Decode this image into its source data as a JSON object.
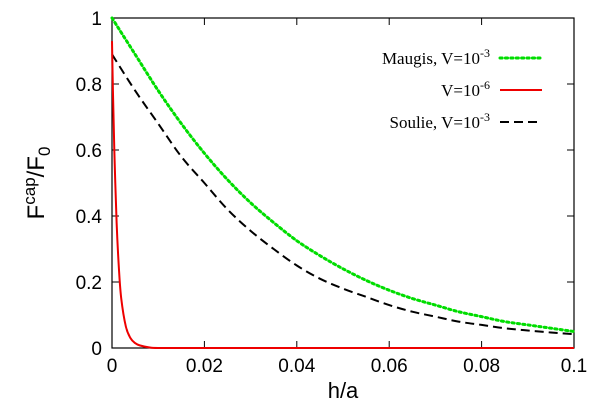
{
  "chart_data": {
    "type": "line",
    "title": "",
    "xlabel": "h/a",
    "ylabel": {
      "main": "F",
      "sup": "cap",
      "slash": "/F",
      "sub": "0"
    },
    "xlim": [
      0,
      0.1
    ],
    "ylim": [
      0,
      1
    ],
    "x_ticks": [
      0,
      0.02,
      0.04,
      0.06,
      0.08,
      0.1
    ],
    "x_tick_labels": [
      "0",
      "0.02",
      "0.04",
      "0.06",
      "0.08",
      "0.1"
    ],
    "y_ticks": [
      0,
      0.2,
      0.4,
      0.6,
      0.8,
      1
    ],
    "y_tick_labels": [
      "0",
      "0.2",
      "0.4",
      "0.6",
      "0.8",
      "1"
    ],
    "grid": false,
    "legend_position": "top-right",
    "series": [
      {
        "name": "Maugis, V=10-3",
        "legend": {
          "prefix": "Maugis, V=10",
          "exp": "-3"
        },
        "color": "#00dd00",
        "dash": "dotted",
        "x": [
          0,
          0.005,
          0.01,
          0.015,
          0.02,
          0.025,
          0.03,
          0.035,
          0.04,
          0.045,
          0.05,
          0.055,
          0.06,
          0.065,
          0.07,
          0.075,
          0.08,
          0.085,
          0.09,
          0.095,
          0.1
        ],
        "y": [
          1.0,
          0.89,
          0.78,
          0.68,
          0.59,
          0.51,
          0.44,
          0.38,
          0.325,
          0.28,
          0.24,
          0.205,
          0.175,
          0.15,
          0.13,
          0.11,
          0.095,
          0.08,
          0.07,
          0.06,
          0.05
        ]
      },
      {
        "name": "V=10-6",
        "legend": {
          "prefix": "V=10",
          "exp": "-6"
        },
        "color": "#ee0000",
        "dash": "solid",
        "x": [
          0,
          0.0002,
          0.0005,
          0.001,
          0.0015,
          0.002,
          0.003,
          0.004,
          0.005,
          0.006,
          0.008,
          0.01,
          0.02,
          0.04,
          0.06,
          0.08,
          0.1
        ],
        "y": [
          0.93,
          0.78,
          0.6,
          0.38,
          0.24,
          0.15,
          0.065,
          0.03,
          0.015,
          0.008,
          0.002,
          0.0,
          0.0,
          0.0,
          0.0,
          0.0,
          0.0
        ]
      },
      {
        "name": "Soulie, V=10-3",
        "legend": {
          "prefix": "Soulie, V=10",
          "exp": "-3"
        },
        "color": "#000000",
        "dash": "dashed",
        "x": [
          0,
          0.005,
          0.01,
          0.015,
          0.02,
          0.025,
          0.03,
          0.035,
          0.04,
          0.045,
          0.05,
          0.055,
          0.06,
          0.065,
          0.07,
          0.075,
          0.08,
          0.085,
          0.09,
          0.095,
          0.1
        ],
        "y": [
          0.89,
          0.78,
          0.68,
          0.58,
          0.5,
          0.42,
          0.355,
          0.3,
          0.25,
          0.21,
          0.18,
          0.155,
          0.13,
          0.11,
          0.095,
          0.08,
          0.07,
          0.06,
          0.053,
          0.047,
          0.042
        ]
      }
    ]
  }
}
